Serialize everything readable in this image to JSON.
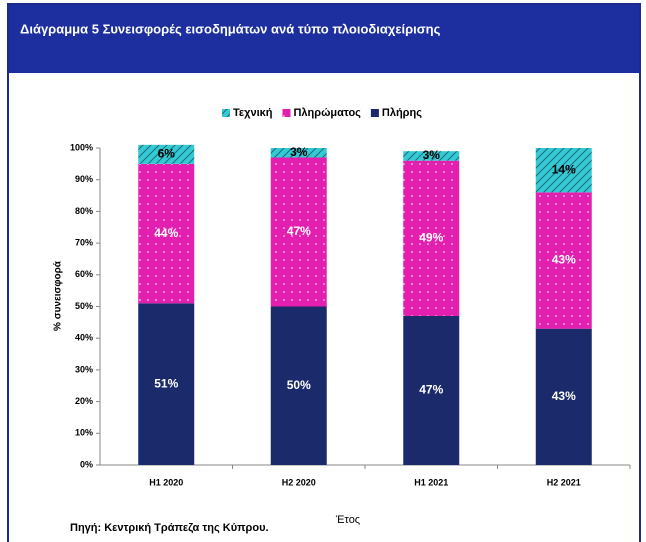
{
  "chart_data": {
    "type": "stacked_bar",
    "title": "Διάγραμμα 5  Συνεισφορές  εισοδημάτων ανά τύπο πλοιοδιαχείρισης",
    "categories": [
      "H1 2020",
      "H2 2020",
      "H1 2021",
      "H2 2021"
    ],
    "series": [
      {
        "name": "Πλήρης",
        "color": "#1b2a6b",
        "values": [
          51,
          50,
          47,
          43
        ],
        "value_labels": [
          "51%",
          "50%",
          "47%",
          "43%"
        ]
      },
      {
        "name": "Πληρώματος",
        "color": "#e21fae",
        "values": [
          44,
          47,
          49,
          43
        ],
        "value_labels": [
          "44%",
          "47%",
          "49%",
          "43%"
        ]
      },
      {
        "name": "Τεχνική",
        "color": "#35c9d6",
        "values": [
          6,
          3,
          3,
          14
        ],
        "value_labels": [
          "6%",
          "3%",
          "3%",
          "14%"
        ]
      }
    ],
    "legend_order": [
      2,
      1,
      0
    ],
    "ylim": [
      0,
      100
    ],
    "yticks": [
      {
        "value": 0,
        "label": "0%"
      },
      {
        "value": 10,
        "label": "10%"
      },
      {
        "value": 20,
        "label": "20%"
      },
      {
        "value": 30,
        "label": "30%"
      },
      {
        "value": 40,
        "label": "40%"
      },
      {
        "value": 50,
        "label": "50%"
      },
      {
        "value": 60,
        "label": "60%"
      },
      {
        "value": 70,
        "label": "70%"
      },
      {
        "value": 80,
        "label": "80%"
      },
      {
        "value": 90,
        "label": "90%"
      },
      {
        "value": 100,
        "label": "100%"
      }
    ],
    "ylabel": "% συνεισφορά",
    "xlabel": "Έτος",
    "source": "Πηγή: Κεντρική Τράπεζα της Κύπρου.",
    "legend": "top",
    "grid": false
  }
}
